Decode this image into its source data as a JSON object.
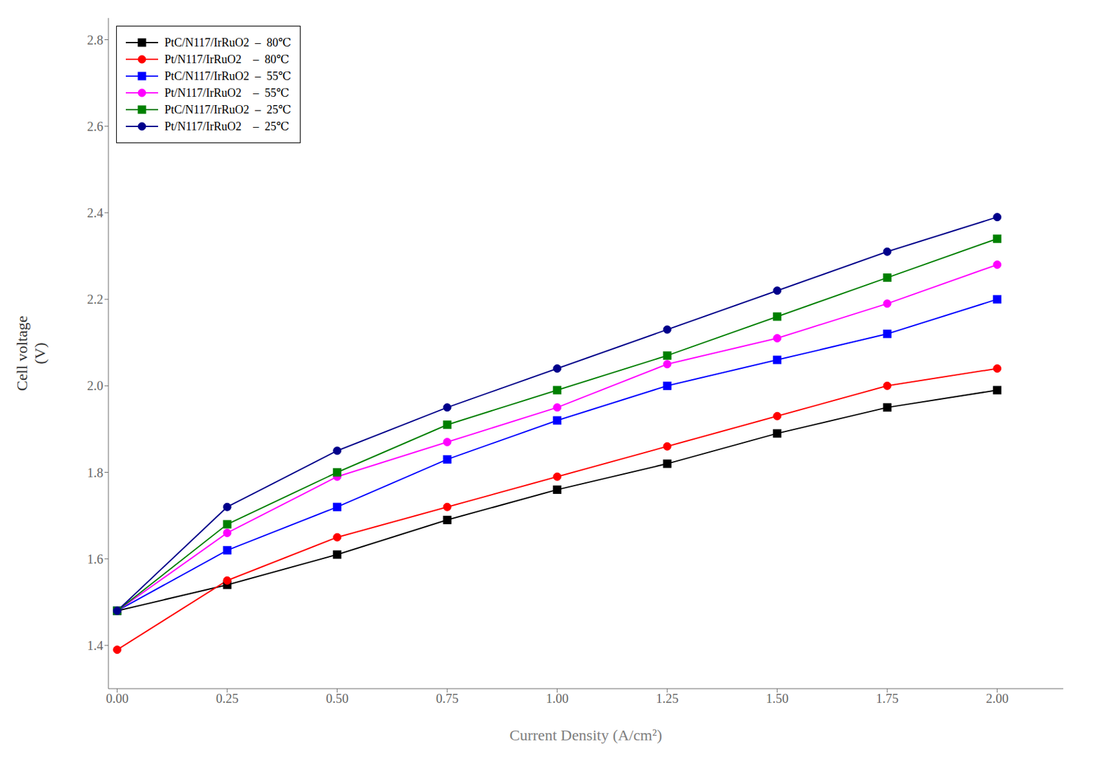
{
  "chart_data": {
    "type": "line",
    "x": [
      0.0,
      0.25,
      0.5,
      0.75,
      1.0,
      1.25,
      1.5,
      1.75,
      2.0
    ],
    "series": [
      {
        "name": "PtC/N117/IrRuO2  –  80℃",
        "color": "#000000",
        "marker": "square",
        "values": [
          1.48,
          1.54,
          1.61,
          1.69,
          1.76,
          1.82,
          1.89,
          1.95,
          1.99
        ]
      },
      {
        "name": "Pt/N117/IrRuO2    –  80℃",
        "color": "#ff0000",
        "marker": "circle",
        "values": [
          1.39,
          1.55,
          1.65,
          1.72,
          1.79,
          1.86,
          1.93,
          2.0,
          2.04
        ]
      },
      {
        "name": "PtC/N117/IrRuO2  –  55℃",
        "color": "#0000ff",
        "marker": "square",
        "values": [
          1.48,
          1.62,
          1.72,
          1.83,
          1.92,
          2.0,
          2.06,
          2.12,
          2.2
        ]
      },
      {
        "name": "Pt/N117/IrRuO2    –  55℃",
        "color": "#ff00ff",
        "marker": "circle",
        "values": [
          1.48,
          1.66,
          1.79,
          1.87,
          1.95,
          2.05,
          2.11,
          2.19,
          2.28
        ]
      },
      {
        "name": "PtC/N117/IrRuO2  –  25℃",
        "color": "#008000",
        "marker": "square",
        "values": [
          1.48,
          1.68,
          1.8,
          1.91,
          1.99,
          2.07,
          2.16,
          2.25,
          2.34
        ]
      },
      {
        "name": "Pt/N117/IrRuO2    –  25℃",
        "color": "#00008b",
        "marker": "circle",
        "values": [
          1.48,
          1.72,
          1.85,
          1.95,
          2.04,
          2.13,
          2.22,
          2.31,
          2.39
        ]
      }
    ],
    "xlabel": "Current Density (A/cm²)",
    "ylabel": "Cell voltage\n(V)",
    "xlim": [
      -0.02,
      2.15
    ],
    "ylim": [
      1.3,
      2.85
    ],
    "xticks": [
      {
        "value": 0,
        "label": "0.00"
      },
      0.25,
      {
        "value": 0.5,
        "label": "0.50"
      },
      0.75,
      {
        "value": 1,
        "label": "1.00"
      },
      1.25,
      {
        "value": 1.5,
        "label": "1.50"
      },
      1.75,
      {
        "value": 2,
        "label": "2.00"
      }
    ],
    "yticks": [
      1.4,
      1.6,
      1.8,
      {
        "value": 2,
        "label": "2.0"
      },
      2.2,
      2.4,
      2.6,
      2.8
    ],
    "grid": false,
    "legend": "upper left"
  }
}
